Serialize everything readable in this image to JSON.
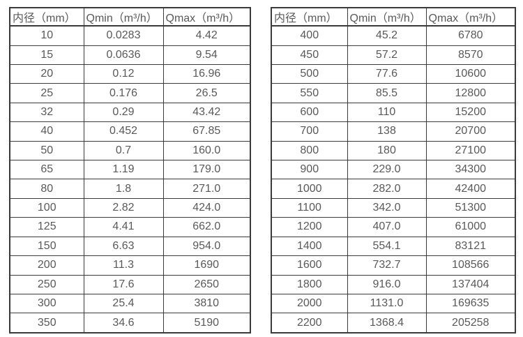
{
  "page": {
    "background_color": "#ffffff",
    "text_color": "#595959",
    "border_color": "#3a3a3a"
  },
  "tables": [
    {
      "name": "flow-table-small-diameters",
      "headers": [
        "内径（mm）",
        "Qmin（m³/h）",
        "Qmax（m³/h）"
      ],
      "rows": [
        [
          "10",
          "0.0283",
          "4.42"
        ],
        [
          "15",
          "0.0636",
          "9.54"
        ],
        [
          "20",
          "0.12",
          "16.96"
        ],
        [
          "25",
          "0.176",
          "26.5"
        ],
        [
          "32",
          "0.29",
          "43.42"
        ],
        [
          "40",
          "0.452",
          "67.85"
        ],
        [
          "50",
          "0.7",
          "160.0"
        ],
        [
          "65",
          "1.19",
          "179.0"
        ],
        [
          "80",
          "1.8",
          "271.0"
        ],
        [
          "100",
          "2.82",
          "424.0"
        ],
        [
          "125",
          "4.41",
          "662.0"
        ],
        [
          "150",
          "6.63",
          "954.0"
        ],
        [
          "200",
          "11.3",
          "1690"
        ],
        [
          "250",
          "17.6",
          "2650"
        ],
        [
          "300",
          "25.4",
          "3810"
        ],
        [
          "350",
          "34.6",
          "5190"
        ]
      ]
    },
    {
      "name": "flow-table-large-diameters",
      "headers": [
        "内径（mm）",
        "Qmin（m³/h）",
        "Qmax（m³/h）"
      ],
      "rows": [
        [
          "400",
          "45.2",
          "6780"
        ],
        [
          "450",
          "57.2",
          "8570"
        ],
        [
          "500",
          "77.6",
          "10600"
        ],
        [
          "550",
          "85.5",
          "12800"
        ],
        [
          "600",
          "110",
          "15200"
        ],
        [
          "700",
          "138",
          "20700"
        ],
        [
          "800",
          "180",
          "27100"
        ],
        [
          "900",
          "229.0",
          "34300"
        ],
        [
          "1000",
          "282.0",
          "42400"
        ],
        [
          "1100",
          "342.0",
          "51300"
        ],
        [
          "1200",
          "407.0",
          "61000"
        ],
        [
          "1400",
          "554.1",
          "83121"
        ],
        [
          "1600",
          "732.7",
          "108566"
        ],
        [
          "1800",
          "916.0",
          "137404"
        ],
        [
          "2000",
          "1131.0",
          "169635"
        ],
        [
          "2200",
          "1368.4",
          "205258"
        ]
      ]
    }
  ]
}
